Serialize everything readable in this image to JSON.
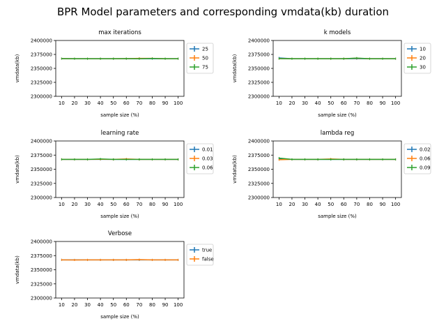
{
  "figure_title": "BPR Model parameters and corresponding vmdata(kb) duration",
  "colors": {
    "blue": "#1f77b4",
    "orange": "#ff7f0e",
    "green": "#2ca02c"
  },
  "chart_data": [
    {
      "type": "line",
      "title": "max iterations",
      "xlabel": "sample size (%)",
      "ylabel": "vmdata(kb)",
      "x": [
        10,
        20,
        30,
        40,
        50,
        60,
        70,
        80,
        90,
        100
      ],
      "ylim": [
        2300000,
        2400000
      ],
      "yticks": [
        2300000,
        2325000,
        2350000,
        2375000,
        2400000
      ],
      "legend_position": "outside-right",
      "series": [
        {
          "name": "25",
          "color": "blue",
          "values": [
            2367500,
            2367400,
            2367400,
            2367400,
            2367400,
            2367400,
            2367400,
            2367400,
            2367400,
            2367400
          ]
        },
        {
          "name": "50",
          "color": "orange",
          "values": [
            2367500,
            2367400,
            2367400,
            2367400,
            2367400,
            2367500,
            2368000,
            2368000,
            2367400,
            2367400
          ]
        },
        {
          "name": "75",
          "color": "green",
          "values": [
            2367500,
            2367400,
            2367400,
            2367400,
            2367400,
            2367500,
            2367400,
            2367800,
            2367400,
            2367400
          ]
        }
      ]
    },
    {
      "type": "line",
      "title": "k models",
      "xlabel": "sample size (%)",
      "ylabel": "vmdata(kb)",
      "x": [
        10,
        20,
        30,
        40,
        50,
        60,
        70,
        80,
        90,
        100
      ],
      "ylim": [
        2300000,
        2400000
      ],
      "yticks": [
        2300000,
        2325000,
        2350000,
        2375000,
        2400000
      ],
      "legend_position": "outside-right",
      "series": [
        {
          "name": "10",
          "color": "blue",
          "values": [
            2368700,
            2367400,
            2367400,
            2367400,
            2367400,
            2367400,
            2367400,
            2367400,
            2367400,
            2367400
          ]
        },
        {
          "name": "20",
          "color": "orange",
          "values": [
            2367500,
            2367400,
            2367400,
            2367400,
            2367400,
            2367400,
            2368200,
            2367400,
            2367400,
            2367400
          ]
        },
        {
          "name": "30",
          "color": "green",
          "values": [
            2367500,
            2367400,
            2367400,
            2367400,
            2367400,
            2367400,
            2368500,
            2367400,
            2367400,
            2367400
          ]
        }
      ]
    },
    {
      "type": "line",
      "title": "learning rate",
      "xlabel": "sample size (%)",
      "ylabel": "vmdata(kb)",
      "x": [
        10,
        20,
        30,
        40,
        50,
        60,
        70,
        80,
        90,
        100
      ],
      "ylim": [
        2300000,
        2400000
      ],
      "yticks": [
        2300000,
        2325000,
        2350000,
        2375000,
        2400000
      ],
      "legend_position": "outside-right",
      "series": [
        {
          "name": "0.01",
          "color": "blue",
          "values": [
            2367400,
            2367400,
            2367400,
            2367400,
            2367400,
            2367400,
            2367400,
            2367400,
            2367400,
            2367400
          ]
        },
        {
          "name": "0.03",
          "color": "orange",
          "values": [
            2367500,
            2367400,
            2367400,
            2367600,
            2367400,
            2368200,
            2367400,
            2367400,
            2367400,
            2367400
          ]
        },
        {
          "name": "0.06",
          "color": "green",
          "values": [
            2367500,
            2367400,
            2367400,
            2368200,
            2367400,
            2367400,
            2367400,
            2367400,
            2367400,
            2367400
          ]
        }
      ]
    },
    {
      "type": "line",
      "title": "lambda reg",
      "xlabel": "sample size (%)",
      "ylabel": "vmdata(kb)",
      "x": [
        10,
        20,
        30,
        40,
        50,
        60,
        70,
        80,
        90,
        100
      ],
      "ylim": [
        2300000,
        2400000
      ],
      "yticks": [
        2300000,
        2325000,
        2350000,
        2375000,
        2400000
      ],
      "legend_position": "outside-right",
      "series": [
        {
          "name": "0.02",
          "color": "blue",
          "values": [
            2368500,
            2367400,
            2367400,
            2367400,
            2367400,
            2367400,
            2367400,
            2367400,
            2367400,
            2367400
          ]
        },
        {
          "name": "0.06",
          "color": "orange",
          "values": [
            2366800,
            2367400,
            2367400,
            2367400,
            2368200,
            2367400,
            2367400,
            2367400,
            2367400,
            2367400
          ]
        },
        {
          "name": "0.09",
          "color": "green",
          "values": [
            2369800,
            2367400,
            2367400,
            2367400,
            2367400,
            2367400,
            2367400,
            2367400,
            2367400,
            2367400
          ]
        }
      ]
    },
    {
      "type": "line",
      "title": "Verbose",
      "xlabel": "sample size (%)",
      "ylabel": "vmdata(kb)",
      "x": [
        10,
        20,
        30,
        40,
        50,
        60,
        70,
        80,
        90,
        100
      ],
      "ylim": [
        2300000,
        2400000
      ],
      "yticks": [
        2300000,
        2325000,
        2350000,
        2375000,
        2400000
      ],
      "legend_position": "outside-right",
      "series": [
        {
          "name": "true",
          "color": "blue",
          "values": [
            2367500,
            2367400,
            2367400,
            2367400,
            2367400,
            2367400,
            2367400,
            2367400,
            2367400,
            2367400
          ]
        },
        {
          "name": "false",
          "color": "orange",
          "values": [
            2367500,
            2367300,
            2367400,
            2367400,
            2367400,
            2367400,
            2367900,
            2367400,
            2367400,
            2367400
          ]
        }
      ]
    }
  ]
}
